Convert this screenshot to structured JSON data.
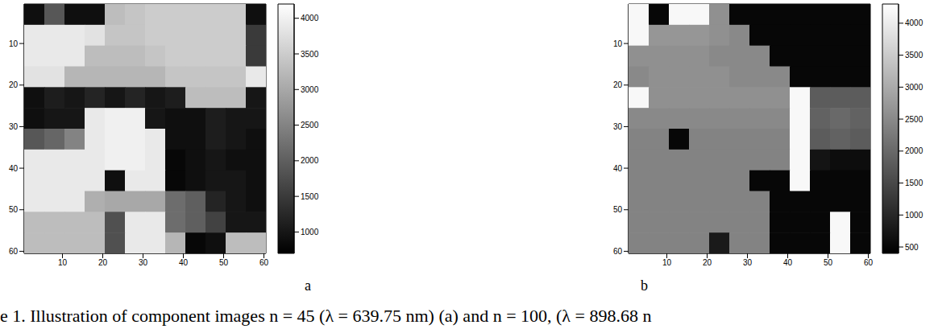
{
  "chart_data": [
    {
      "type": "heatmap",
      "label": "a",
      "x": [
        3,
        8,
        13,
        18,
        23,
        28,
        33,
        38,
        43,
        48,
        53,
        58
      ],
      "y": [
        3,
        8,
        13,
        18,
        23,
        28,
        33,
        38,
        43,
        48,
        53,
        58
      ],
      "xlim": [
        0.5,
        60.5
      ],
      "ylim": [
        0.5,
        60.5
      ],
      "xticks": [
        10,
        20,
        30,
        40,
        50,
        60
      ],
      "yticks": [
        10,
        20,
        30,
        40,
        50,
        60
      ],
      "cells": [
        [
          900,
          1900,
          900,
          900,
          3300,
          3400,
          3500,
          3500,
          3500,
          3500,
          3500,
          900
        ],
        [
          3900,
          3900,
          3900,
          3800,
          3400,
          3400,
          3500,
          3500,
          3500,
          3500,
          3500,
          1500
        ],
        [
          3900,
          3900,
          3900,
          3300,
          3300,
          3300,
          3400,
          3500,
          3500,
          3500,
          3500,
          1500
        ],
        [
          3800,
          3800,
          3200,
          3200,
          3200,
          3200,
          3200,
          3400,
          3400,
          3400,
          3400,
          3900
        ],
        [
          900,
          1100,
          1000,
          1200,
          1000,
          1200,
          1000,
          1100,
          3300,
          3300,
          3300,
          1000
        ],
        [
          900,
          1000,
          1000,
          3900,
          4000,
          4000,
          1000,
          900,
          900,
          1100,
          1000,
          1000
        ],
        [
          1900,
          2100,
          2500,
          3900,
          4000,
          4000,
          3900,
          900,
          900,
          1100,
          1000,
          900
        ],
        [
          3900,
          3900,
          3900,
          3900,
          4000,
          4000,
          3900,
          800,
          900,
          1000,
          900,
          900
        ],
        [
          3900,
          3900,
          3900,
          3900,
          900,
          3900,
          3900,
          800,
          900,
          1000,
          1000,
          900
        ],
        [
          3900,
          3900,
          3900,
          3100,
          3000,
          3000,
          3000,
          2200,
          2000,
          1200,
          1000,
          900
        ],
        [
          3300,
          3300,
          3300,
          3300,
          1800,
          3900,
          3900,
          2200,
          2000,
          1600,
          1000,
          1000
        ],
        [
          3300,
          3300,
          3300,
          3300,
          1800,
          3900,
          3900,
          3200,
          800,
          900,
          3300,
          3300
        ]
      ],
      "colorbar": {
        "range": [
          700,
          4200
        ],
        "ticks": [
          1000,
          1500,
          2000,
          2500,
          3000,
          3500,
          4000
        ]
      }
    },
    {
      "type": "heatmap",
      "label": "b",
      "x": [
        3,
        8,
        13,
        18,
        23,
        28,
        33,
        38,
        43,
        48,
        53,
        58
      ],
      "y": [
        3,
        8,
        13,
        18,
        23,
        28,
        33,
        38,
        43,
        48,
        53,
        58
      ],
      "xlim": [
        0.5,
        60.5
      ],
      "ylim": [
        0.5,
        60.5
      ],
      "xticks": [
        10,
        20,
        30,
        40,
        50,
        60
      ],
      "yticks": [
        10,
        20,
        30,
        40,
        50,
        60
      ],
      "cells": [
        [
          4200,
          500,
          4200,
          4200,
          2600,
          500,
          500,
          500,
          500,
          500,
          500,
          500
        ],
        [
          4200,
          2700,
          2700,
          2700,
          2600,
          2500,
          500,
          500,
          500,
          500,
          500,
          500
        ],
        [
          2600,
          2600,
          2600,
          2600,
          2500,
          2500,
          2500,
          500,
          500,
          500,
          500,
          500
        ],
        [
          2500,
          2600,
          2600,
          2600,
          2600,
          2500,
          2500,
          2500,
          500,
          500,
          500,
          500
        ],
        [
          4200,
          2600,
          2600,
          2600,
          2600,
          2600,
          2600,
          2600,
          4200,
          1800,
          1800,
          1800
        ],
        [
          2500,
          2500,
          2500,
          2500,
          2500,
          2500,
          2500,
          2500,
          4200,
          1900,
          2000,
          1900
        ],
        [
          2400,
          2400,
          500,
          2400,
          2400,
          2400,
          2400,
          2400,
          4200,
          1800,
          1900,
          1800
        ],
        [
          2400,
          2400,
          2400,
          2400,
          2400,
          2400,
          2400,
          2400,
          4200,
          700,
          600,
          600
        ],
        [
          2400,
          2400,
          2400,
          2400,
          2400,
          2400,
          500,
          500,
          4200,
          500,
          500,
          500
        ],
        [
          2400,
          2400,
          2400,
          2400,
          2400,
          2400,
          2400,
          500,
          500,
          500,
          500,
          500
        ],
        [
          2400,
          2400,
          2400,
          2400,
          2400,
          2400,
          2400,
          500,
          500,
          500,
          4200,
          500
        ],
        [
          2400,
          2400,
          2400,
          2400,
          800,
          2400,
          2400,
          500,
          500,
          500,
          4200,
          500
        ]
      ],
      "colorbar": {
        "range": [
          400,
          4300
        ],
        "ticks": [
          500,
          1000,
          1500,
          2000,
          2500,
          3000,
          3500,
          4000
        ]
      }
    }
  ],
  "caption": "e 1. Illustration of component images n = 45 (λ = 639.75 nm) (a) and n = 100, (λ = 898.68 n"
}
